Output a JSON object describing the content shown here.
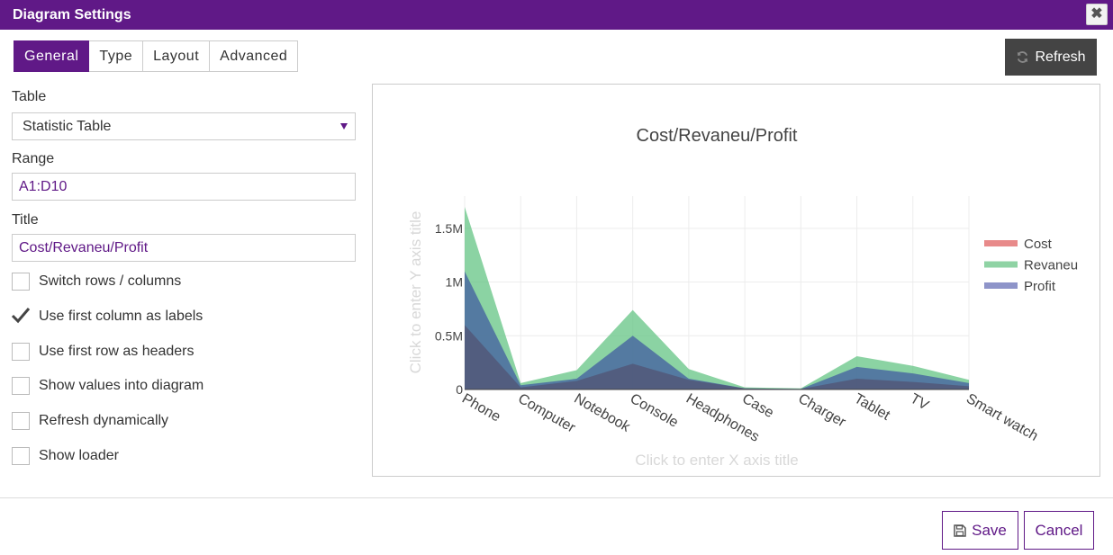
{
  "dialog": {
    "title": "Diagram Settings",
    "close_glyph": "✖"
  },
  "tabs": [
    {
      "label": "General",
      "active": true
    },
    {
      "label": "Type",
      "active": false
    },
    {
      "label": "Layout",
      "active": false
    },
    {
      "label": "Advanced",
      "active": false
    }
  ],
  "refresh_label": "Refresh",
  "form": {
    "table_label": "Table",
    "table_value": "Statistic Table",
    "range_label": "Range",
    "range_value": "A1:D10",
    "title_label": "Title",
    "title_value": "Cost/Revaneu/Profit"
  },
  "options": [
    {
      "label": "Switch rows / columns",
      "checked": false
    },
    {
      "label": "Use first column as labels",
      "checked": true
    },
    {
      "label": "Use first row as headers",
      "checked": false
    },
    {
      "label": "Show values into diagram",
      "checked": false
    },
    {
      "label": "Refresh dynamically",
      "checked": false
    },
    {
      "label": "Show loader",
      "checked": false
    }
  ],
  "footer": {
    "save_label": "Save",
    "cancel_label": "Cancel"
  },
  "chart_data": {
    "type": "area",
    "title": "Cost/Revaneu/Profit",
    "xlabel": "Click to enter X axis title",
    "ylabel": "Click to enter Y axis title",
    "categories": [
      "Phone",
      "Computer",
      "Notebook",
      "Console",
      "Headphones",
      "Case",
      "Charger",
      "Tablet",
      "TV",
      "Smart watch"
    ],
    "ylim": [
      0,
      1800000
    ],
    "yticks": [
      0,
      500000,
      1000000,
      1500000
    ],
    "ytick_labels": [
      "0",
      "0.5M",
      "1M",
      "1.5M"
    ],
    "legend_position": "right",
    "series": [
      {
        "name": "Cost",
        "color": "#e88a8a",
        "values": [
          600000,
          20000,
          80000,
          240000,
          90000,
          10000,
          5000,
          100000,
          70000,
          30000
        ]
      },
      {
        "name": "Revaneu",
        "color": "#8fd3a4",
        "values": [
          1700000,
          60000,
          180000,
          740000,
          190000,
          20000,
          10000,
          310000,
          220000,
          90000
        ]
      },
      {
        "name": "Profit",
        "color": "#8e94c9",
        "values": [
          1100000,
          40000,
          100000,
          500000,
          100000,
          10000,
          5000,
          210000,
          150000,
          60000
        ]
      }
    ]
  }
}
